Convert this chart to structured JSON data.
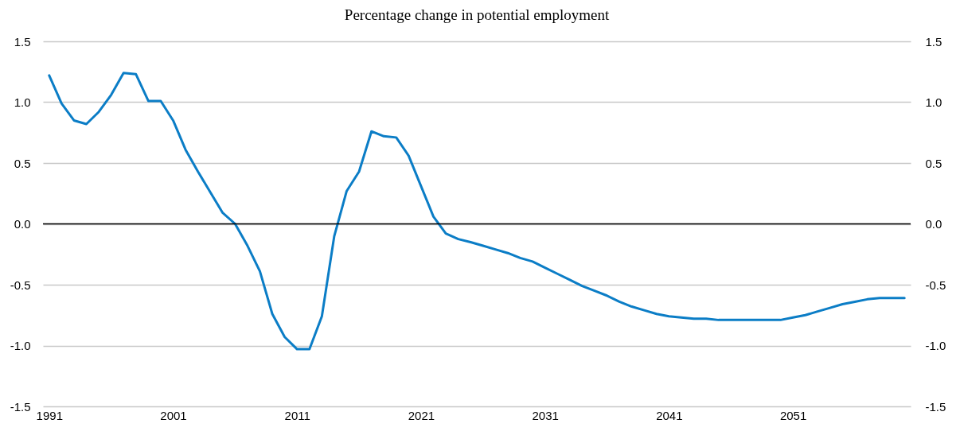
{
  "chart_data": {
    "type": "line",
    "title": "Percentage change in potential employment",
    "x": [
      1991,
      1992,
      1993,
      1994,
      1995,
      1996,
      1997,
      1998,
      1999,
      2000,
      2001,
      2002,
      2003,
      2004,
      2005,
      2006,
      2007,
      2008,
      2009,
      2010,
      2011,
      2012,
      2013,
      2014,
      2015,
      2016,
      2017,
      2018,
      2019,
      2020,
      2021,
      2022,
      2023,
      2024,
      2025,
      2026,
      2027,
      2028,
      2029,
      2030,
      2031,
      2032,
      2033,
      2034,
      2035,
      2036,
      2037,
      2038,
      2039,
      2040,
      2041,
      2042,
      2043,
      2044,
      2045,
      2046,
      2047,
      2048,
      2049,
      2050,
      2051,
      2052,
      2053,
      2054,
      2055,
      2056,
      2057,
      2058,
      2059,
      2060
    ],
    "series": [
      {
        "color": "#0b7dc6",
        "values": [
          1.22,
          0.99,
          0.85,
          0.82,
          0.92,
          1.06,
          1.24,
          1.23,
          1.01,
          1.01,
          0.85,
          0.61,
          0.43,
          0.26,
          0.09,
          0.0,
          -0.18,
          -0.39,
          -0.74,
          -0.93,
          -1.03,
          -1.03,
          -0.76,
          -0.1,
          0.27,
          0.43,
          0.76,
          0.72,
          0.71,
          0.56,
          0.31,
          0.06,
          -0.08,
          -0.125,
          -0.15,
          -0.18,
          -0.21,
          -0.24,
          -0.28,
          -0.31,
          -0.36,
          -0.41,
          -0.46,
          -0.51,
          -0.55,
          -0.59,
          -0.64,
          -0.68,
          -0.71,
          -0.74,
          -0.76,
          -0.77,
          -0.78,
          -0.78,
          -0.79,
          -0.79,
          -0.79,
          -0.79,
          -0.79,
          -0.79,
          -0.77,
          -0.75,
          -0.72,
          -0.69,
          -0.66,
          -0.64,
          -0.62,
          -0.61,
          -0.61,
          -0.61
        ]
      }
    ],
    "xlim": [
      1990.5,
      2060.5
    ],
    "xticks": [
      1991,
      2001,
      2011,
      2021,
      2031,
      2041,
      2051
    ],
    "ylim": [
      -1.5,
      1.5
    ],
    "yticks": [
      -1.5,
      {
        "value": -1,
        "label": "-1.0"
      },
      -0.5,
      {
        "value": 0,
        "label": "0.0"
      },
      0.5,
      {
        "value": 1,
        "label": "1.0"
      },
      1.5
    ],
    "y2lim": [
      -1.5,
      1.5
    ],
    "y2ticks": [
      -1.5,
      {
        "value": -1,
        "label": "-1.0"
      },
      -0.5,
      {
        "value": 0,
        "label": "0.0"
      },
      0.5,
      {
        "value": 1,
        "label": "1.0"
      },
      1.5
    ],
    "ref_lines": [
      {
        "axis": "y",
        "value": 0,
        "color": "#000000"
      }
    ],
    "grid": "y",
    "marker": "none",
    "line_style": "solid"
  }
}
